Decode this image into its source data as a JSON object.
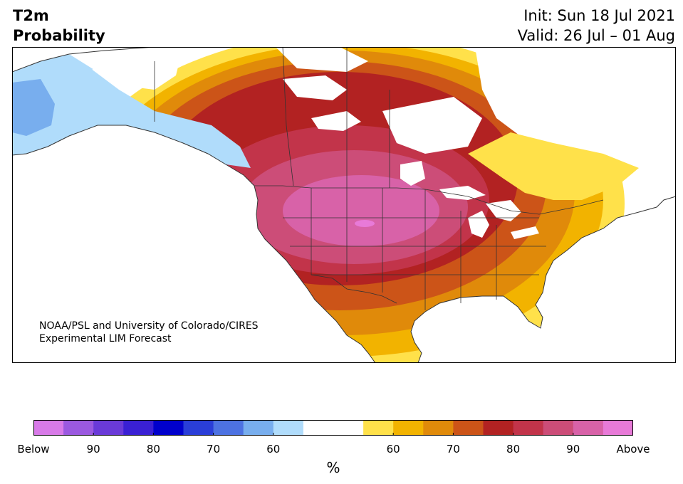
{
  "title": {
    "line1": "T2m",
    "line2": "Probability"
  },
  "forecast": {
    "init": "Init: Sun 18 Jul 2021",
    "valid": "Valid: 26 Jul – 01 Aug"
  },
  "credit": {
    "line1": "NOAA/PSL and University of Colorado/CIRES",
    "line2": "Experimental LIM Forecast"
  },
  "colorbar": {
    "colors": [
      "#d87ae8",
      "#9b59e0",
      "#6a3ad8",
      "#3a20d4",
      "#0000cc",
      "#2a3ed8",
      "#4d72e2",
      "#78aeee",
      "#b0dcfb",
      "#ffffff",
      "#ffffff",
      "#ffe14a",
      "#f2b300",
      "#e08a0a",
      "#cc5418",
      "#b22222",
      "#c2344a",
      "#cc4d78",
      "#d862a8",
      "#e87ad8"
    ],
    "labels": [
      {
        "text": "Below",
        "boundary": 0
      },
      {
        "text": "90",
        "boundary": 2
      },
      {
        "text": "80",
        "boundary": 4
      },
      {
        "text": "70",
        "boundary": 6
      },
      {
        "text": "60",
        "boundary": 8
      },
      {
        "text": "60",
        "boundary": 12
      },
      {
        "text": "70",
        "boundary": 14
      },
      {
        "text": "80",
        "boundary": 16
      },
      {
        "text": "90",
        "boundary": 18
      },
      {
        "text": "Above",
        "boundary": 20
      }
    ],
    "unit": "%"
  },
  "map_colors": {
    "ocean": "#ffffff",
    "land_neutral": "#ffffff",
    "light_blue": "#b0dcfb",
    "blue": "#78aeee",
    "yellow": "#ffe14a",
    "gold": "#f2b300",
    "orange": "#e08a0a",
    "dark_orange": "#cc5418",
    "red": "#b22222",
    "crimson": "#c2344a",
    "rose": "#cc4d78",
    "pink": "#d862a8",
    "magenta": "#e87ad8",
    "border": "#333333"
  }
}
